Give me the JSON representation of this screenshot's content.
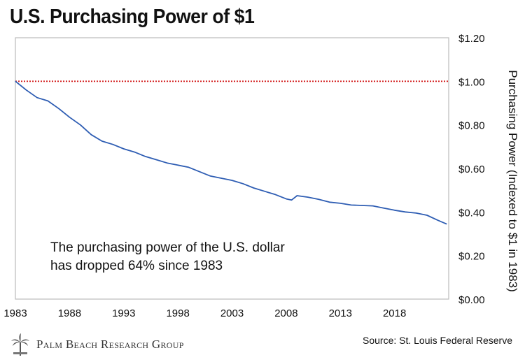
{
  "chart_data": {
    "type": "line",
    "title": "U.S. Purchasing Power of $1",
    "ylabel": "Purchasing Power (Indexed to $1 in 1983)",
    "xlabel": "",
    "xlim": [
      1983,
      2023
    ],
    "ylim": [
      0.0,
      1.2
    ],
    "x_ticks": [
      "1983",
      "1988",
      "1993",
      "1998",
      "2003",
      "2008",
      "2013",
      "2018"
    ],
    "x_tick_values": [
      1983,
      1988,
      1993,
      1998,
      2003,
      2008,
      2013,
      2018
    ],
    "y_ticks": [
      "$0.00",
      "$0.20",
      "$0.40",
      "$0.60",
      "$0.80",
      "$1.00",
      "$1.20"
    ],
    "y_tick_values": [
      0.0,
      0.2,
      0.4,
      0.6,
      0.8,
      1.0,
      1.2
    ],
    "y_axis_position": "right",
    "grid": false,
    "reference_line": {
      "y": 1.0,
      "color": "#d42020",
      "style": "dotted"
    },
    "series": [
      {
        "color": "#2e5db3",
        "x": [
          1983,
          1984,
          1985,
          1986,
          1987,
          1988,
          1989,
          1990,
          1991,
          1992,
          1993,
          1994,
          1995,
          1996,
          1997,
          1998,
          1999,
          2000,
          2001,
          2002,
          2003,
          2004,
          2005,
          2006,
          2007,
          2008,
          2008.5,
          2009,
          2010,
          2011,
          2012,
          2013,
          2014,
          2015,
          2016,
          2017,
          2018,
          2019,
          2020,
          2021,
          2022,
          2022.8
        ],
        "y": [
          1.0,
          0.96,
          0.925,
          0.91,
          0.875,
          0.835,
          0.8,
          0.755,
          0.725,
          0.71,
          0.69,
          0.675,
          0.655,
          0.64,
          0.625,
          0.615,
          0.605,
          0.585,
          0.565,
          0.555,
          0.545,
          0.53,
          0.51,
          0.495,
          0.48,
          0.46,
          0.455,
          0.475,
          0.468,
          0.458,
          0.445,
          0.44,
          0.432,
          0.43,
          0.428,
          0.418,
          0.408,
          0.4,
          0.395,
          0.385,
          0.362,
          0.345
        ]
      }
    ]
  },
  "annotation": {
    "line1": "The purchasing power of the U.S. dollar",
    "line2": "has dropped 64% since 1983"
  },
  "footer": {
    "brand": "Palm Beach Research Group",
    "source": "Source: St. Louis Federal Reserve"
  },
  "colors": {
    "line": "#2e5db3",
    "reference": "#d42020",
    "frame": "#bbbbbb",
    "text": "#111111"
  }
}
